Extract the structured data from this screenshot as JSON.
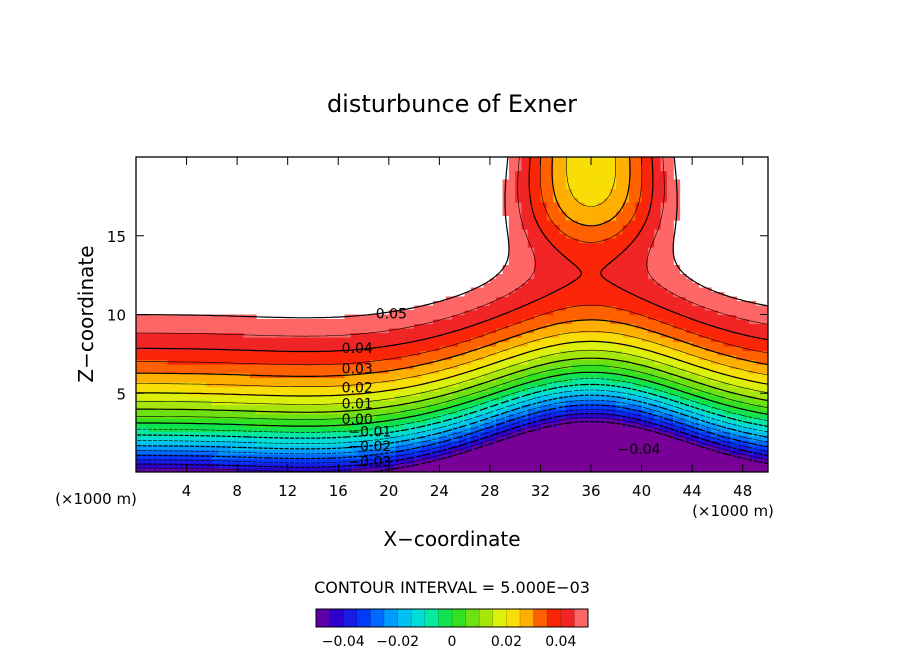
{
  "chart_data": {
    "type": "heatmap",
    "title": "disturbunce of Exner",
    "xlabel": "X−coordinate",
    "ylabel": "Z−coordinate",
    "x_unit": "(×1000 m)",
    "x_unit_right": "(×1000 m)",
    "xlim": [
      0,
      50
    ],
    "ylim": [
      0,
      20
    ],
    "x_ticks": [
      4,
      8,
      12,
      16,
      20,
      24,
      28,
      32,
      36,
      40,
      44,
      48
    ],
    "y_ticks": [
      5,
      10,
      15
    ],
    "contour_interval_text": "CONTOUR INTERVAL = 5.000E−03",
    "contour_interval": 0.005,
    "zlim": [
      -0.05,
      0.05
    ],
    "colorbar_ticks": [
      -0.04,
      -0.02,
      0,
      0.02,
      0.04
    ],
    "colorbar_tick_labels": [
      "−0.04",
      "−0.02",
      "0",
      "0.02",
      "0.04"
    ],
    "contour_labels": [
      {
        "text": "0.05",
        "x": 20.2,
        "z": 10.0
      },
      {
        "text": "0.04",
        "x": 17.5,
        "z": 7.8
      },
      {
        "text": "0.03",
        "x": 17.5,
        "z": 6.5
      },
      {
        "text": "0.02",
        "x": 17.5,
        "z": 5.3
      },
      {
        "text": "0.01",
        "x": 17.5,
        "z": 4.3
      },
      {
        "text": "0.00",
        "x": 17.5,
        "z": 3.3
      },
      {
        "text": "−0.01",
        "x": 18.5,
        "z": 2.5
      },
      {
        "text": "−0.02",
        "x": 18.5,
        "z": 1.6
      },
      {
        "text": "−0.03",
        "x": 18.5,
        "z": 0.6
      },
      {
        "text": "−0.04",
        "x": 39.8,
        "z": 1.4
      }
    ],
    "colormap": "rainbow (purple → blue → cyan → green → yellow → red → light red)",
    "blank_regions": "values above 0.05 left unshaded (upper-left and upper-right)"
  }
}
